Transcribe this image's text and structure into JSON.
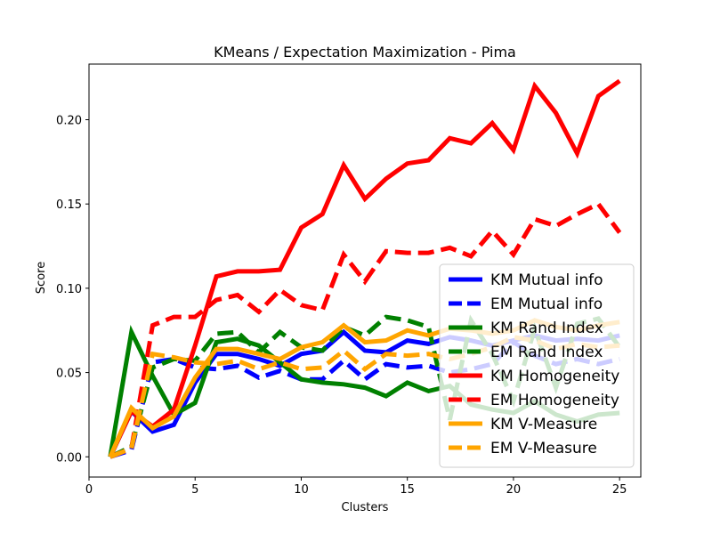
{
  "chart_data": {
    "type": "line",
    "title": "KMeans / Expectation Maximization - Pima",
    "xlabel": "Clusters",
    "ylabel": "Score",
    "xlim": [
      0,
      26
    ],
    "ylim": [
      -0.012,
      0.233
    ],
    "x_ticks": [
      0,
      5,
      10,
      15,
      20,
      25
    ],
    "x_tick_labels": [
      "0",
      "5",
      "10",
      "15",
      "20",
      "25"
    ],
    "y_ticks": [
      0.0,
      0.05,
      0.1,
      0.15,
      0.2
    ],
    "y_tick_labels": [
      "0.00",
      "0.05",
      "0.10",
      "0.15",
      "0.20"
    ],
    "grid": false,
    "legend_position": "lower-right",
    "x": [
      1,
      2,
      3,
      4,
      5,
      6,
      7,
      8,
      9,
      10,
      11,
      12,
      13,
      14,
      15,
      16,
      17,
      18,
      19,
      20,
      21,
      22,
      23,
      24,
      25
    ],
    "series": [
      {
        "name": "KM Mutual info",
        "color": "#0000ff",
        "dash": "solid",
        "values": [
          0.0,
          0.027,
          0.015,
          0.019,
          0.044,
          0.061,
          0.061,
          0.058,
          0.054,
          0.061,
          0.063,
          0.074,
          0.063,
          0.062,
          0.069,
          0.067,
          0.071,
          0.069,
          0.066,
          0.069,
          0.072,
          0.069,
          0.07,
          0.069,
          0.072
        ]
      },
      {
        "name": "EM Mutual info",
        "color": "#0000ff",
        "dash": "dashed",
        "values": [
          0.0,
          0.004,
          0.056,
          0.058,
          0.053,
          0.052,
          0.054,
          0.047,
          0.051,
          0.046,
          0.046,
          0.057,
          0.046,
          0.055,
          0.053,
          0.054,
          0.05,
          0.052,
          0.055,
          0.068,
          0.06,
          0.055,
          0.058,
          0.055,
          0.058
        ]
      },
      {
        "name": "KM Rand Index",
        "color": "#008000",
        "dash": "solid",
        "values": [
          0.0,
          0.074,
          0.048,
          0.025,
          0.032,
          0.068,
          0.07,
          0.066,
          0.056,
          0.046,
          0.044,
          0.043,
          0.041,
          0.036,
          0.044,
          0.039,
          0.042,
          0.031,
          0.028,
          0.026,
          0.033,
          0.025,
          0.021,
          0.025,
          0.026
        ]
      },
      {
        "name": "EM Rand Index",
        "color": "#008000",
        "dash": "dashed",
        "values": [
          0.0,
          0.006,
          0.053,
          0.058,
          0.057,
          0.073,
          0.074,
          0.062,
          0.074,
          0.065,
          0.063,
          0.077,
          0.072,
          0.083,
          0.081,
          0.077,
          0.022,
          0.081,
          0.061,
          0.033,
          0.076,
          0.041,
          0.079,
          0.082,
          0.065
        ]
      },
      {
        "name": "KM Homogeneity",
        "color": "#ff0000",
        "dash": "solid",
        "values": [
          0.0,
          0.027,
          0.018,
          0.028,
          0.066,
          0.107,
          0.11,
          0.11,
          0.111,
          0.136,
          0.144,
          0.173,
          0.153,
          0.165,
          0.174,
          0.176,
          0.189,
          0.186,
          0.198,
          0.182,
          0.22,
          0.204,
          0.18,
          0.214,
          0.223
        ]
      },
      {
        "name": "EM Homogeneity",
        "color": "#ff0000",
        "dash": "dashed",
        "values": [
          0.0,
          0.005,
          0.078,
          0.083,
          0.083,
          0.093,
          0.096,
          0.086,
          0.099,
          0.09,
          0.087,
          0.12,
          0.104,
          0.122,
          0.121,
          0.121,
          0.124,
          0.119,
          0.134,
          0.12,
          0.141,
          0.137,
          0.144,
          0.15,
          0.133
        ]
      },
      {
        "name": "KM V-Measure",
        "color": "#ffa500",
        "dash": "solid",
        "values": [
          0.0,
          0.029,
          0.017,
          0.024,
          0.047,
          0.064,
          0.064,
          0.061,
          0.058,
          0.065,
          0.068,
          0.078,
          0.068,
          0.069,
          0.075,
          0.072,
          0.076,
          0.075,
          0.073,
          0.075,
          0.081,
          0.077,
          0.075,
          0.078,
          0.08
        ]
      },
      {
        "name": "EM V-Measure",
        "color": "#ffa500",
        "dash": "dashed",
        "values": [
          0.0,
          0.005,
          0.061,
          0.059,
          0.056,
          0.055,
          0.057,
          0.052,
          0.056,
          0.052,
          0.053,
          0.063,
          0.052,
          0.061,
          0.06,
          0.061,
          0.058,
          0.061,
          0.065,
          0.071,
          0.069,
          0.064,
          0.067,
          0.065,
          0.066
        ]
      }
    ]
  }
}
